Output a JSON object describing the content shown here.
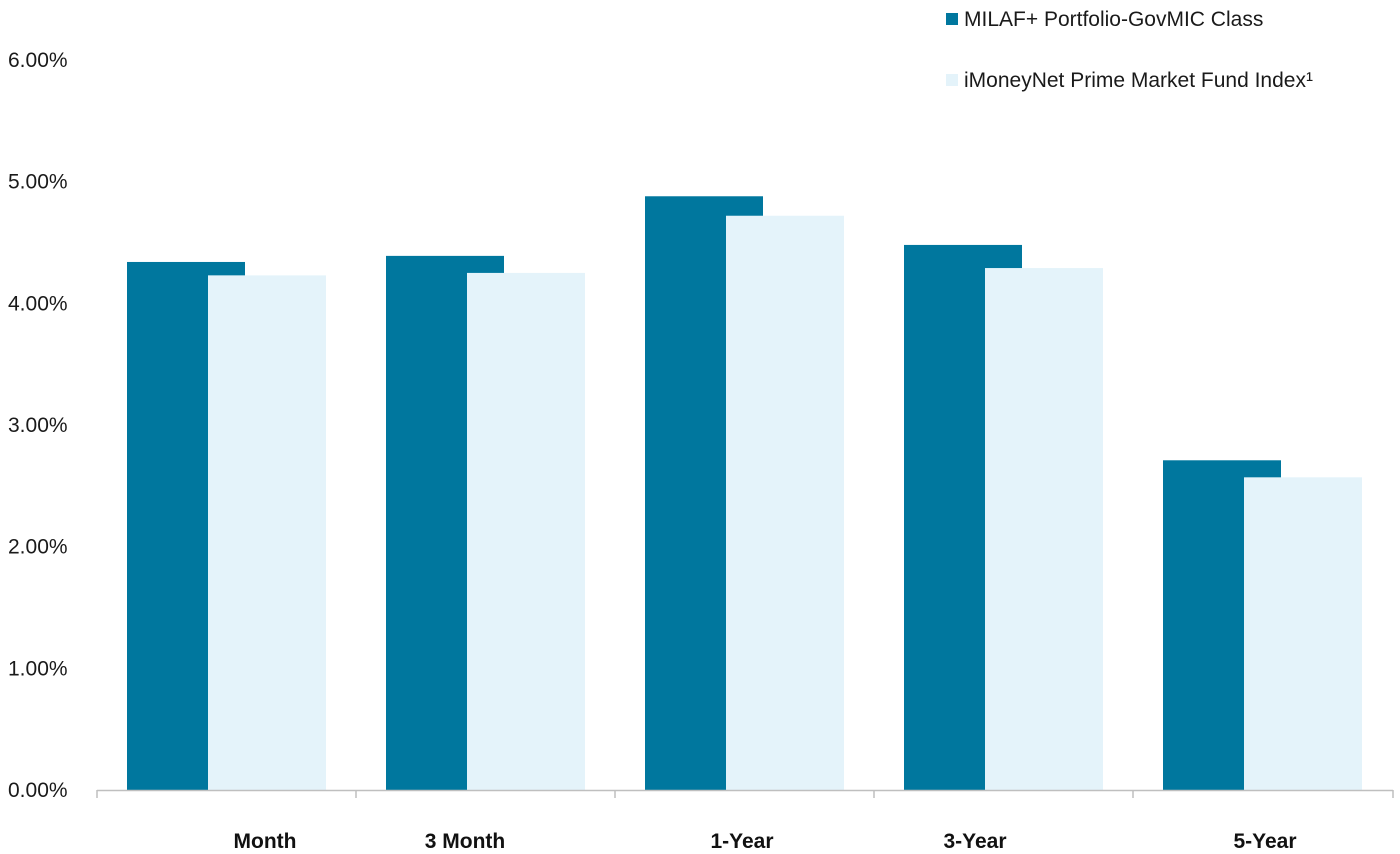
{
  "chart_data": {
    "type": "bar",
    "categories": [
      "Month",
      "3 Month",
      "1-Year",
      "3-Year",
      "5-Year"
    ],
    "series": [
      {
        "name": "MILAF+ Portfolio-GovMIC Class",
        "color": "#00779E",
        "values": [
          4.34,
          4.39,
          4.88,
          4.48,
          2.71
        ]
      },
      {
        "name": "iMoneyNet Prime Market Fund Index¹",
        "color": "#E4F3FA",
        "values": [
          4.23,
          4.25,
          4.72,
          4.29,
          2.57
        ]
      }
    ],
    "y_ticks": [
      "0.00%",
      "1.00%",
      "2.00%",
      "3.00%",
      "4.00%",
      "5.00%",
      "6.00%"
    ],
    "ylim": [
      0,
      6
    ],
    "grid": false,
    "legend_position": "top-right",
    "axis_color": "#BFBFBF"
  }
}
